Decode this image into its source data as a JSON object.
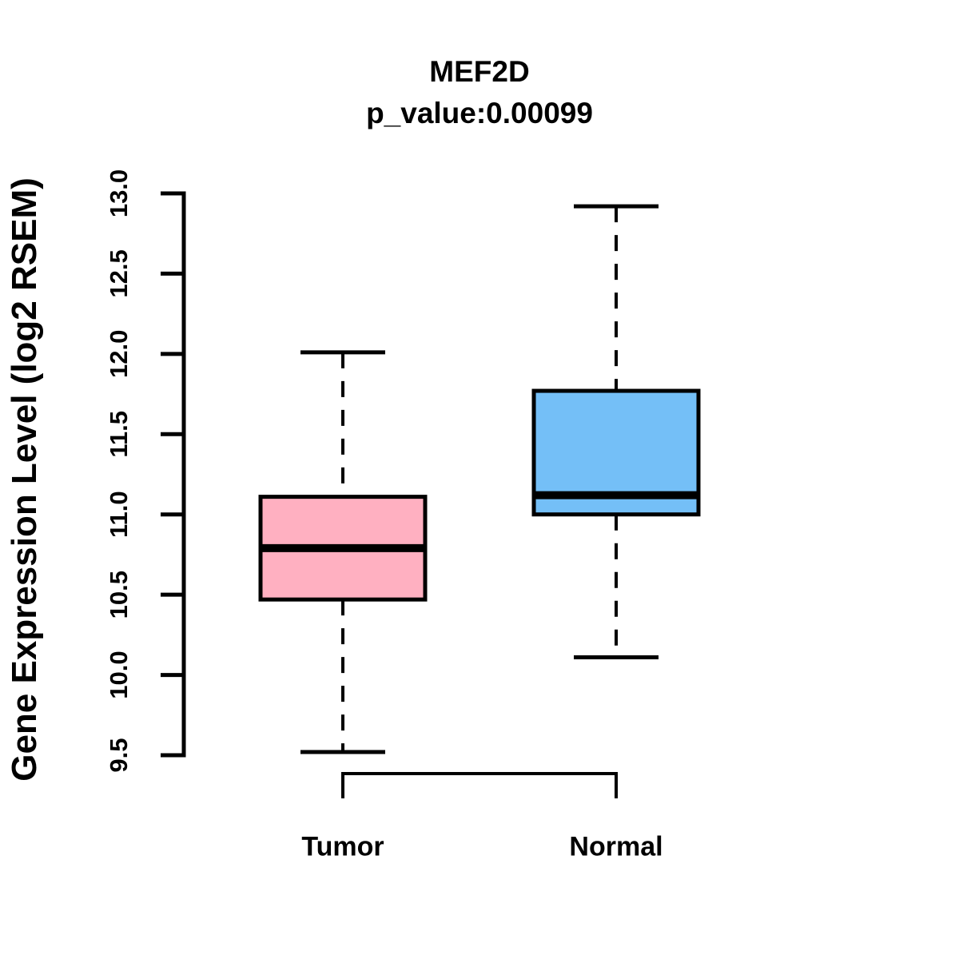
{
  "chart_data": {
    "type": "boxplot",
    "title": "MEF2D",
    "subtitle": "p_value:0.00099",
    "xlabel": "",
    "ylabel": "Gene Expression Level (log2 RSEM)",
    "ylim": [
      9.5,
      13.0
    ],
    "yticks": [
      "9.5",
      "10.0",
      "10.5",
      "11.0",
      "11.5",
      "12.0",
      "12.5",
      "13.0"
    ],
    "grid": false,
    "legend": "none",
    "categories": [
      "Tumor",
      "Normal"
    ],
    "boxes": [
      {
        "category": "Tumor",
        "fill_color": "#FFB0C1",
        "whisker_low": 9.52,
        "q1": 10.47,
        "median": 10.79,
        "q3": 11.11,
        "whisker_high": 12.01
      },
      {
        "category": "Normal",
        "fill_color": "#74BFF7",
        "whisker_low": 10.11,
        "q1": 11.0,
        "median": 11.12,
        "q3": 11.77,
        "whisker_high": 12.92
      }
    ],
    "whisker_line_style": "dashed",
    "outline_color": "#000000",
    "background_color": "#FFFFFF"
  }
}
